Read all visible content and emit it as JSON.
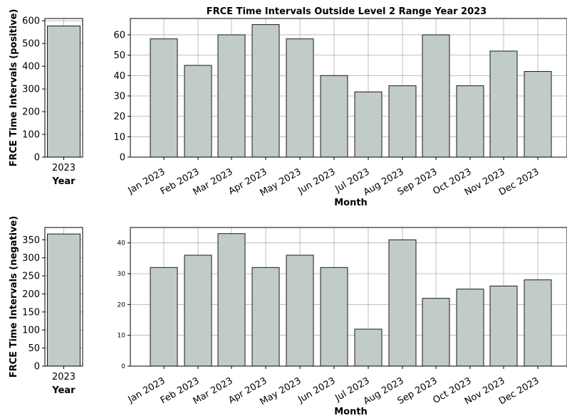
{
  "chart_data": [
    {
      "type": "bar",
      "panel": "top-left",
      "categories": [
        "2023"
      ],
      "values": [
        577
      ],
      "xlabel": "Year",
      "ylabel": "FRCE Time Intervals (positive)",
      "ylim": [
        0,
        610
      ],
      "yticks": [
        0,
        100,
        200,
        300,
        400,
        500,
        600
      ],
      "grid": true
    },
    {
      "type": "bar",
      "panel": "top-right",
      "title": "FRCE Time Intervals Outside Level 2 Range Year 2023",
      "categories": [
        "Jan 2023",
        "Feb 2023",
        "Mar 2023",
        "Apr 2023",
        "May 2023",
        "Jun 2023",
        "Jul 2023",
        "Aug 2023",
        "Sep 2023",
        "Oct 2023",
        "Nov 2023",
        "Dec 2023"
      ],
      "values": [
        58,
        45,
        60,
        65,
        58,
        40,
        32,
        35,
        60,
        35,
        52,
        42
      ],
      "xlabel": "Month",
      "ylim": [
        0,
        68
      ],
      "yticks": [
        0,
        10,
        20,
        30,
        40,
        50,
        60
      ],
      "grid": true
    },
    {
      "type": "bar",
      "panel": "bottom-left",
      "categories": [
        "2023"
      ],
      "values": [
        366
      ],
      "xlabel": "Year",
      "ylabel": "FRCE Time Intervals (negative)",
      "ylim": [
        0,
        384
      ],
      "yticks": [
        0,
        50,
        100,
        150,
        200,
        250,
        300,
        350
      ],
      "grid": true
    },
    {
      "type": "bar",
      "panel": "bottom-right",
      "categories": [
        "Jan 2023",
        "Feb 2023",
        "Mar 2023",
        "Apr 2023",
        "May 2023",
        "Jun 2023",
        "Jul 2023",
        "Aug 2023",
        "Sep 2023",
        "Oct 2023",
        "Nov 2023",
        "Dec 2023"
      ],
      "values": [
        32,
        36,
        43,
        32,
        36,
        32,
        12,
        41,
        22,
        25,
        26,
        28
      ],
      "xlabel": "Month",
      "ylim": [
        0,
        45
      ],
      "yticks": [
        0,
        10,
        20,
        30,
        40
      ],
      "grid": true
    }
  ]
}
